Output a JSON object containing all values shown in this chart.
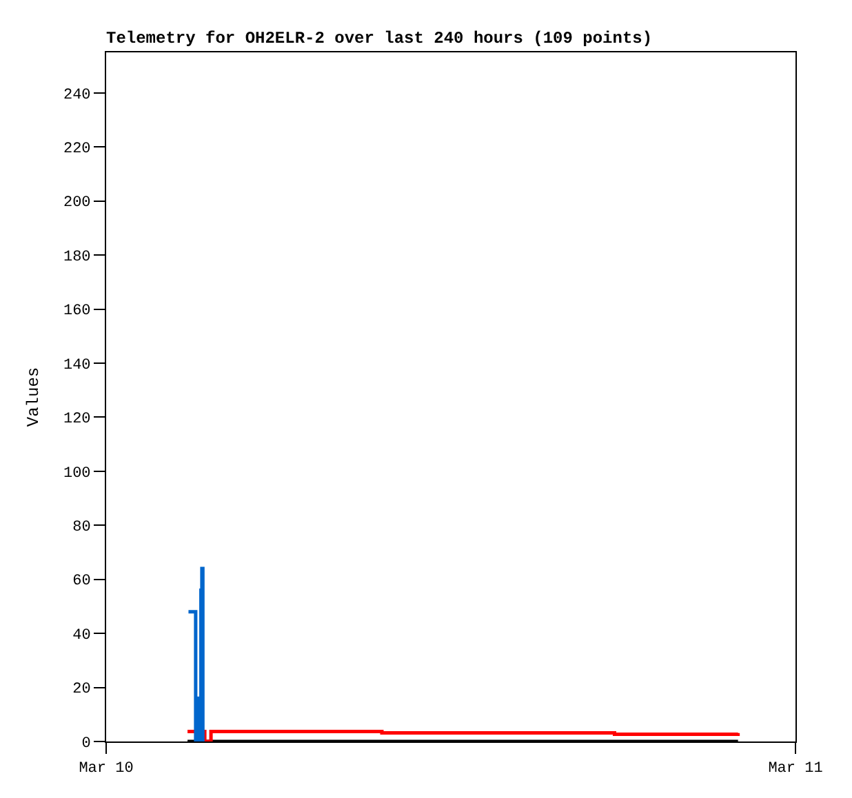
{
  "chart_data": {
    "type": "step",
    "title": "Telemetry for OH2ELR-2 over last 240 hours (109 points)",
    "ylabel": "Values",
    "xlim": [
      "--03-10",
      "--03-11"
    ],
    "xticks": [
      {
        "value": "--03-10",
        "label": "Mar 10"
      },
      {
        "value": "--03-11",
        "label": "Mar 11"
      }
    ],
    "ylim": [
      0,
      255
    ],
    "yticks": [
      0,
      20,
      40,
      60,
      80,
      100,
      120,
      140,
      160,
      180,
      200,
      220,
      240
    ],
    "marker": "none",
    "line_style": "solid",
    "series": [
      {
        "color": "#000000",
        "x": [
          "--03-10T02:50",
          "--03-10T22:00"
        ],
        "values": [
          0,
          0
        ]
      },
      {
        "color": "#ff0000",
        "x": [
          "--03-10T02:50",
          "--03-10T03:26",
          "--03-10T03:39",
          "--03-10T09:36",
          "--03-10T17:42",
          "--03-10T22:00"
        ],
        "values": [
          3.7,
          0,
          3.7,
          3.2,
          2.7,
          3.1
        ]
      },
      {
        "color": "#0066cc",
        "x": [
          "--03-10T02:52",
          "--03-10T03:07",
          "--03-10T03:14",
          "--03-10T03:16",
          "--03-10T03:18",
          "--03-10T03:19",
          "--03-10T03:20",
          "--03-10T03:22"
        ],
        "values": [
          48,
          0,
          16,
          0,
          56,
          0,
          64,
          0
        ]
      }
    ]
  }
}
